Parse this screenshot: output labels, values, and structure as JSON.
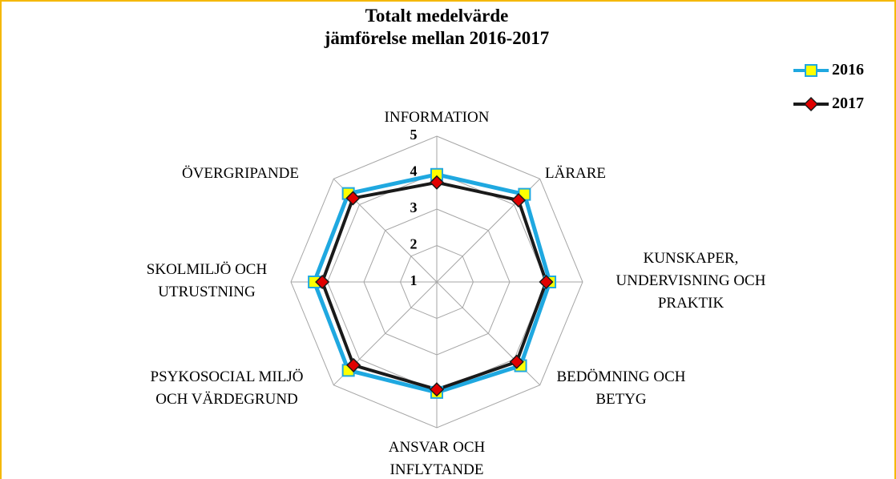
{
  "chart_data": {
    "type": "radar",
    "title": "Totalt medelvärde\njämförelse mellan 2016-2017",
    "categories": [
      "INFORMATION",
      "LÄRARE",
      "KUNSKAPER,\nUNDERVISNING OCH\nPRAKTIK",
      "BEDÖMNING OCH\nBETYG",
      "ANSVAR OCH\nINFLYTANDE",
      "PSYKOSOCIAL MILJÖ\nOCH VÄRDEGRUND",
      "SKOLMILJÖ OCH\nUTRUSTNING",
      "ÖVERGRIPANDE"
    ],
    "series": [
      {
        "name": "2016",
        "color": "#1fa8e0",
        "marker_color": "#ffff00",
        "values": [
          3.95,
          4.4,
          4.1,
          4.25,
          4.03,
          4.43,
          4.36,
          4.43
        ]
      },
      {
        "name": "2017",
        "color": "#1a1a1a",
        "marker_color": "#e00000",
        "values": [
          3.73,
          4.17,
          4.0,
          4.1,
          3.95,
          4.23,
          4.14,
          4.25
        ]
      }
    ],
    "rlim": [
      1,
      5
    ],
    "rticks": [
      1,
      2,
      3,
      4,
      5
    ],
    "grid": true,
    "legend": "top-right"
  }
}
